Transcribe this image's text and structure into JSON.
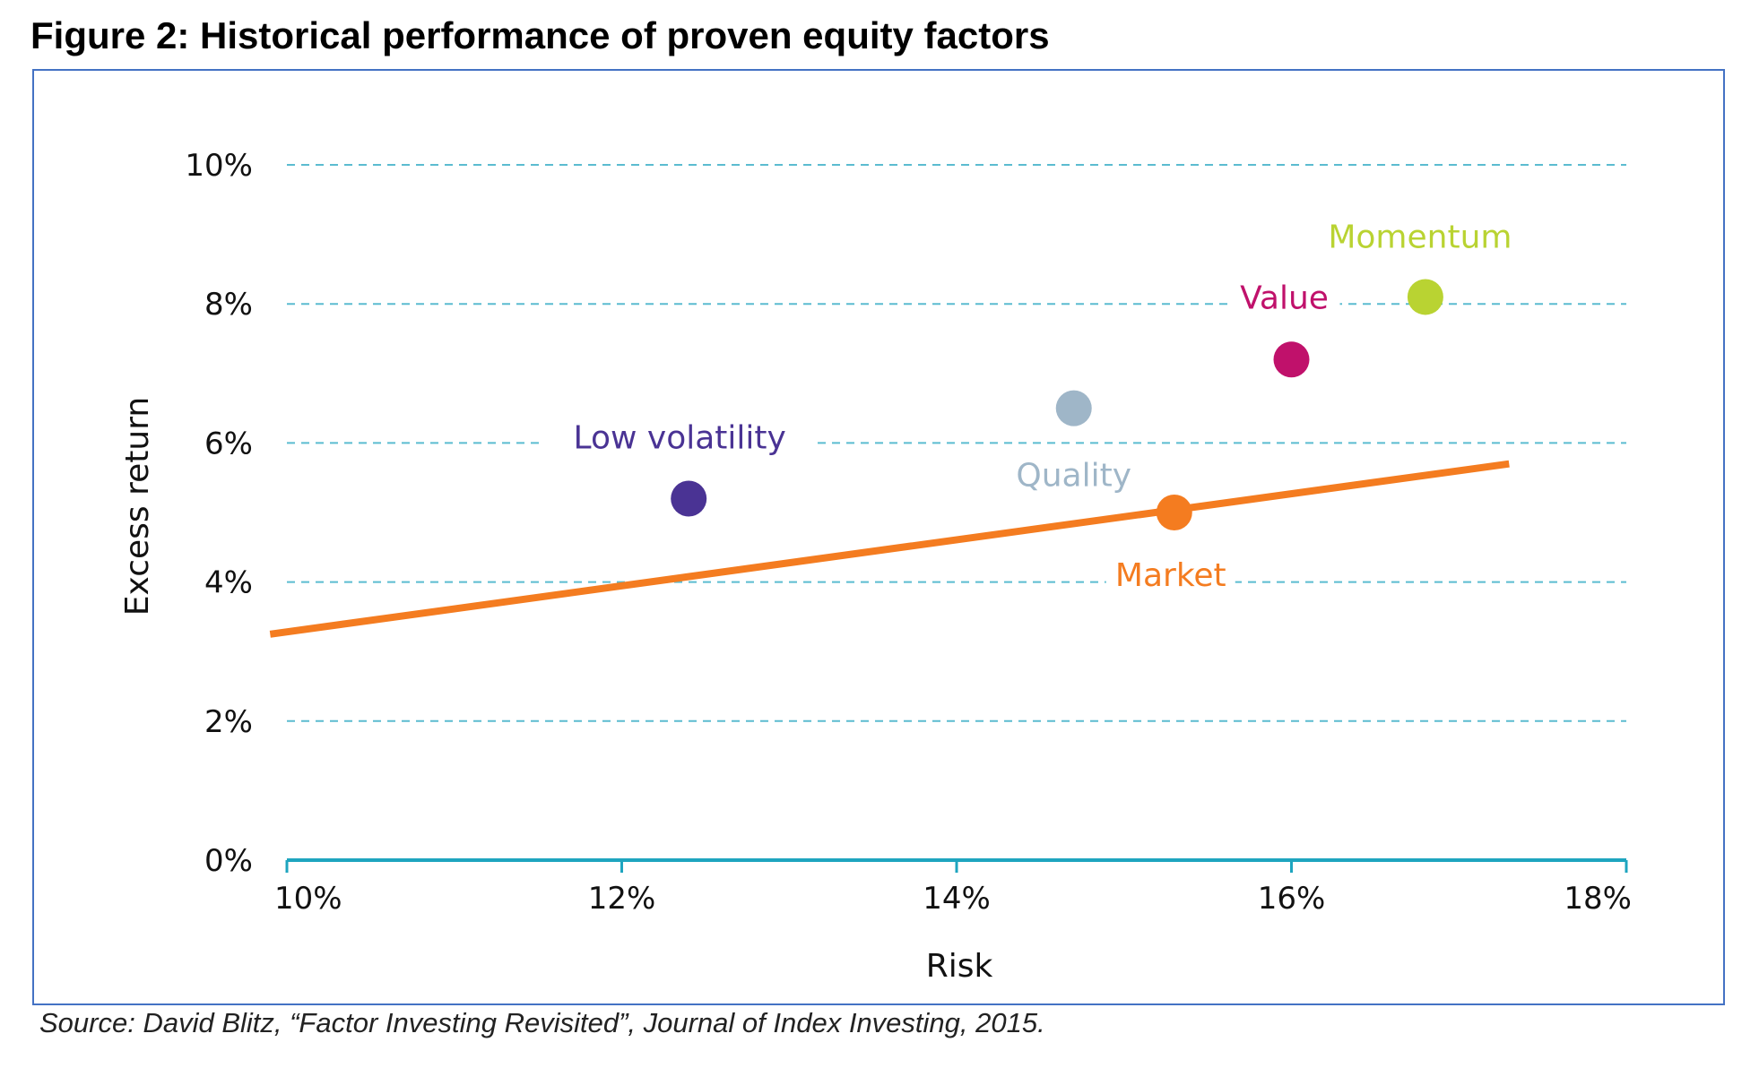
{
  "title": "Figure 2: Historical performance of proven equity factors",
  "source": "Source: David Blitz, “Factor Investing Revisited”, Journal of Index Investing, 2015.",
  "chart_data": {
    "type": "scatter",
    "xlabel": "Risk",
    "ylabel": "Excess return",
    "xlim": [
      10,
      18
    ],
    "ylim": [
      0,
      10
    ],
    "x_ticks": [
      10,
      12,
      14,
      16,
      18
    ],
    "x_tick_labels": [
      "10%",
      "12%",
      "14%",
      "16%",
      "18%"
    ],
    "y_ticks": [
      0,
      2,
      4,
      6,
      8,
      10
    ],
    "y_tick_labels": [
      "0%",
      "2%",
      "4%",
      "6%",
      "8%",
      "10%"
    ],
    "grid": "horizontal dashed",
    "points": [
      {
        "name": "Low volatility",
        "x": 12.4,
        "y": 5.2,
        "color": "#4a3394"
      },
      {
        "name": "Quality",
        "x": 14.7,
        "y": 6.5,
        "color": "#9fb6c8"
      },
      {
        "name": "Market",
        "x": 15.3,
        "y": 5.0,
        "color": "#f47c20"
      },
      {
        "name": "Value",
        "x": 16.0,
        "y": 7.2,
        "color": "#c0116b"
      },
      {
        "name": "Momentum",
        "x": 16.8,
        "y": 8.1,
        "color": "#b9d332"
      }
    ],
    "line": {
      "color": "#f47c20",
      "x": [
        9.9,
        17.3
      ],
      "y": [
        3.25,
        5.7
      ]
    },
    "colors": {
      "grid": "#5bbcd0",
      "axis": "#1ea5bf"
    }
  }
}
